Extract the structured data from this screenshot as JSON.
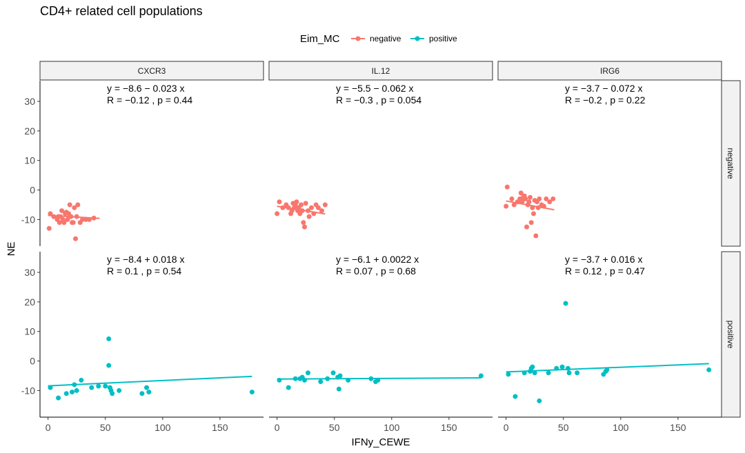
{
  "chart_data": {
    "type": "scatter",
    "title": "CD4+ related cell populations",
    "xlabel": "IFNy_CEWE",
    "ylabel": "NE",
    "xlim": [
      -7,
      188
    ],
    "ylim": [
      -19,
      37
    ],
    "x_ticks": [
      0,
      50,
      100,
      150
    ],
    "y_ticks": [
      -10,
      0,
      10,
      20,
      30
    ],
    "legend": {
      "title": "Eim_MC",
      "position": "top",
      "entries": [
        {
          "label": "negative",
          "color": "#F8766D"
        },
        {
          "label": "positive",
          "color": "#00BFC4"
        }
      ]
    },
    "column_facets": [
      "CXCR3",
      "IL.12",
      "IRG6"
    ],
    "row_facets": [
      "negative",
      "positive"
    ],
    "panels": [
      {
        "row": "negative",
        "col": "CXCR3",
        "color": "#F8766D",
        "eq_line1": "y = −8.6 − 0.023 x",
        "eq_line2": "R = −0.12 , p = 0.44",
        "fit": {
          "x": [
            0,
            45
          ],
          "y": [
            -8.6,
            -9.6
          ]
        },
        "points": [
          [
            1,
            -13
          ],
          [
            2,
            -8
          ],
          [
            5,
            -9
          ],
          [
            8,
            -10
          ],
          [
            9,
            -9
          ],
          [
            10,
            -11
          ],
          [
            11,
            -9
          ],
          [
            12,
            -7
          ],
          [
            13,
            -10
          ],
          [
            14,
            -11
          ],
          [
            15,
            -8
          ],
          [
            16,
            -7.5
          ],
          [
            17,
            -10
          ],
          [
            18,
            -8
          ],
          [
            19,
            -5
          ],
          [
            20,
            -9
          ],
          [
            21,
            -11
          ],
          [
            22,
            -11
          ],
          [
            23,
            -6
          ],
          [
            24,
            -16.5
          ],
          [
            25,
            -9
          ],
          [
            26,
            -5
          ],
          [
            28,
            -11
          ],
          [
            30,
            -10
          ],
          [
            33,
            -10
          ],
          [
            36,
            -10
          ],
          [
            40,
            -9.5
          ]
        ]
      },
      {
        "row": "negative",
        "col": "IL.12",
        "color": "#F8766D",
        "eq_line1": "y = −5.5 − 0.062 x",
        "eq_line2": "R = −0.3 , p = 0.054",
        "fit": {
          "x": [
            0,
            42
          ],
          "y": [
            -5.5,
            -8.1
          ]
        },
        "points": [
          [
            0,
            -8
          ],
          [
            2,
            -4
          ],
          [
            5,
            -6
          ],
          [
            8,
            -5
          ],
          [
            10,
            -6
          ],
          [
            12,
            -8
          ],
          [
            13,
            -7
          ],
          [
            14,
            -4.5
          ],
          [
            15,
            -6
          ],
          [
            16,
            -5
          ],
          [
            17,
            -4
          ],
          [
            18,
            -7
          ],
          [
            19,
            -6
          ],
          [
            20,
            -8
          ],
          [
            21,
            -5
          ],
          [
            22,
            -7
          ],
          [
            23,
            -11
          ],
          [
            24,
            -12.5
          ],
          [
            25,
            -4.5
          ],
          [
            27,
            -7
          ],
          [
            28,
            -9
          ],
          [
            30,
            -6
          ],
          [
            32,
            -8
          ],
          [
            34,
            -5
          ],
          [
            36,
            -6
          ],
          [
            39,
            -7
          ],
          [
            42,
            -5
          ]
        ]
      },
      {
        "row": "negative",
        "col": "IRG6",
        "color": "#F8766D",
        "eq_line1": "y = −3.7 − 0.072 x",
        "eq_line2": "R = −0.2 , p = 0.22",
        "fit": {
          "x": [
            0,
            42
          ],
          "y": [
            -3.7,
            -6.7
          ]
        },
        "points": [
          [
            0,
            -5.5
          ],
          [
            1,
            1
          ],
          [
            5,
            -3
          ],
          [
            7,
            -5
          ],
          [
            10,
            -4
          ],
          [
            12,
            -3
          ],
          [
            13,
            -1
          ],
          [
            14,
            -4
          ],
          [
            15,
            -2.5
          ],
          [
            16,
            -2
          ],
          [
            17,
            -3
          ],
          [
            18,
            -12.5
          ],
          [
            19,
            -5
          ],
          [
            20,
            -4
          ],
          [
            21,
            -2.5
          ],
          [
            22,
            -11
          ],
          [
            23,
            -6
          ],
          [
            24,
            -8
          ],
          [
            25,
            -3.5
          ],
          [
            26,
            -15.5
          ],
          [
            27,
            -4
          ],
          [
            28,
            -6
          ],
          [
            29,
            -3
          ],
          [
            31,
            -5
          ],
          [
            33,
            -5.5
          ],
          [
            35,
            -3
          ],
          [
            38,
            -4
          ],
          [
            41,
            -3
          ]
        ]
      },
      {
        "row": "positive",
        "col": "CXCR3",
        "color": "#00BFC4",
        "eq_line1": "y = −8.4 + 0.018 x",
        "eq_line2": "R = 0.1 , p = 0.54",
        "fit": {
          "x": [
            0,
            178
          ],
          "y": [
            -8.4,
            -5.2
          ]
        },
        "points": [
          [
            2,
            -9
          ],
          [
            9,
            -12.5
          ],
          [
            16,
            -11
          ],
          [
            21,
            -10.5
          ],
          [
            23,
            -8
          ],
          [
            25,
            -10
          ],
          [
            29,
            -6.5
          ],
          [
            38,
            -9
          ],
          [
            44,
            -8.5
          ],
          [
            50,
            -8.5
          ],
          [
            53,
            7.5
          ],
          [
            53,
            -1.5
          ],
          [
            54,
            -9
          ],
          [
            55,
            -10
          ],
          [
            56,
            -11
          ],
          [
            62,
            -10
          ],
          [
            82,
            -11
          ],
          [
            86,
            -9
          ],
          [
            88,
            -10.5
          ],
          [
            178,
            -10.5
          ]
        ]
      },
      {
        "row": "positive",
        "col": "IL.12",
        "color": "#00BFC4",
        "eq_line1": "y = −6.1 + 0.0022 x",
        "eq_line2": "R = 0.07 , p = 0.68",
        "fit": {
          "x": [
            0,
            178
          ],
          "y": [
            -6.1,
            -5.7
          ]
        },
        "points": [
          [
            2,
            -6.5
          ],
          [
            10,
            -9
          ],
          [
            16,
            -6
          ],
          [
            20,
            -6
          ],
          [
            22,
            -5.5
          ],
          [
            24,
            -6.5
          ],
          [
            27,
            -4
          ],
          [
            38,
            -7
          ],
          [
            44,
            -6
          ],
          [
            49,
            -4
          ],
          [
            53,
            -5.5
          ],
          [
            54,
            -9.5
          ],
          [
            55,
            -5
          ],
          [
            62,
            -6.5
          ],
          [
            82,
            -6
          ],
          [
            86,
            -7
          ],
          [
            88,
            -6.5
          ],
          [
            178,
            -5
          ]
        ]
      },
      {
        "row": "positive",
        "col": "IRG6",
        "color": "#00BFC4",
        "eq_line1": "y = −3.7 + 0.016 x",
        "eq_line2": "R = 0.12 , p = 0.47",
        "fit": {
          "x": [
            0,
            177
          ],
          "y": [
            -3.7,
            -0.9
          ]
        },
        "points": [
          [
            2,
            -4.5
          ],
          [
            8,
            -12
          ],
          [
            16,
            -4
          ],
          [
            21,
            -3.5
          ],
          [
            22,
            -2.5
          ],
          [
            23,
            -2
          ],
          [
            25,
            -4
          ],
          [
            29,
            -13.5
          ],
          [
            37,
            -4
          ],
          [
            44,
            -2.5
          ],
          [
            49,
            -2
          ],
          [
            52,
            19.5
          ],
          [
            54,
            -2.5
          ],
          [
            55,
            -4
          ],
          [
            62,
            -4
          ],
          [
            85,
            -4.5
          ],
          [
            87,
            -3.5
          ],
          [
            88,
            -3
          ],
          [
            177,
            -3
          ]
        ]
      }
    ]
  }
}
